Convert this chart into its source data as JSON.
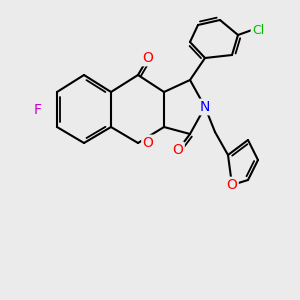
{
  "background_color": "#ebebeb",
  "bond_color": "#000000",
  "bond_lw": 1.5,
  "atom_labels": {
    "F": {
      "color": "#cc00cc",
      "fontsize": 9
    },
    "N": {
      "color": "#0000ff",
      "fontsize": 9
    },
    "O": {
      "color": "#ff0000",
      "fontsize": 9
    },
    "Cl": {
      "color": "#00bb00",
      "fontsize": 9
    }
  },
  "figsize": [
    3.0,
    3.0
  ],
  "dpi": 100
}
